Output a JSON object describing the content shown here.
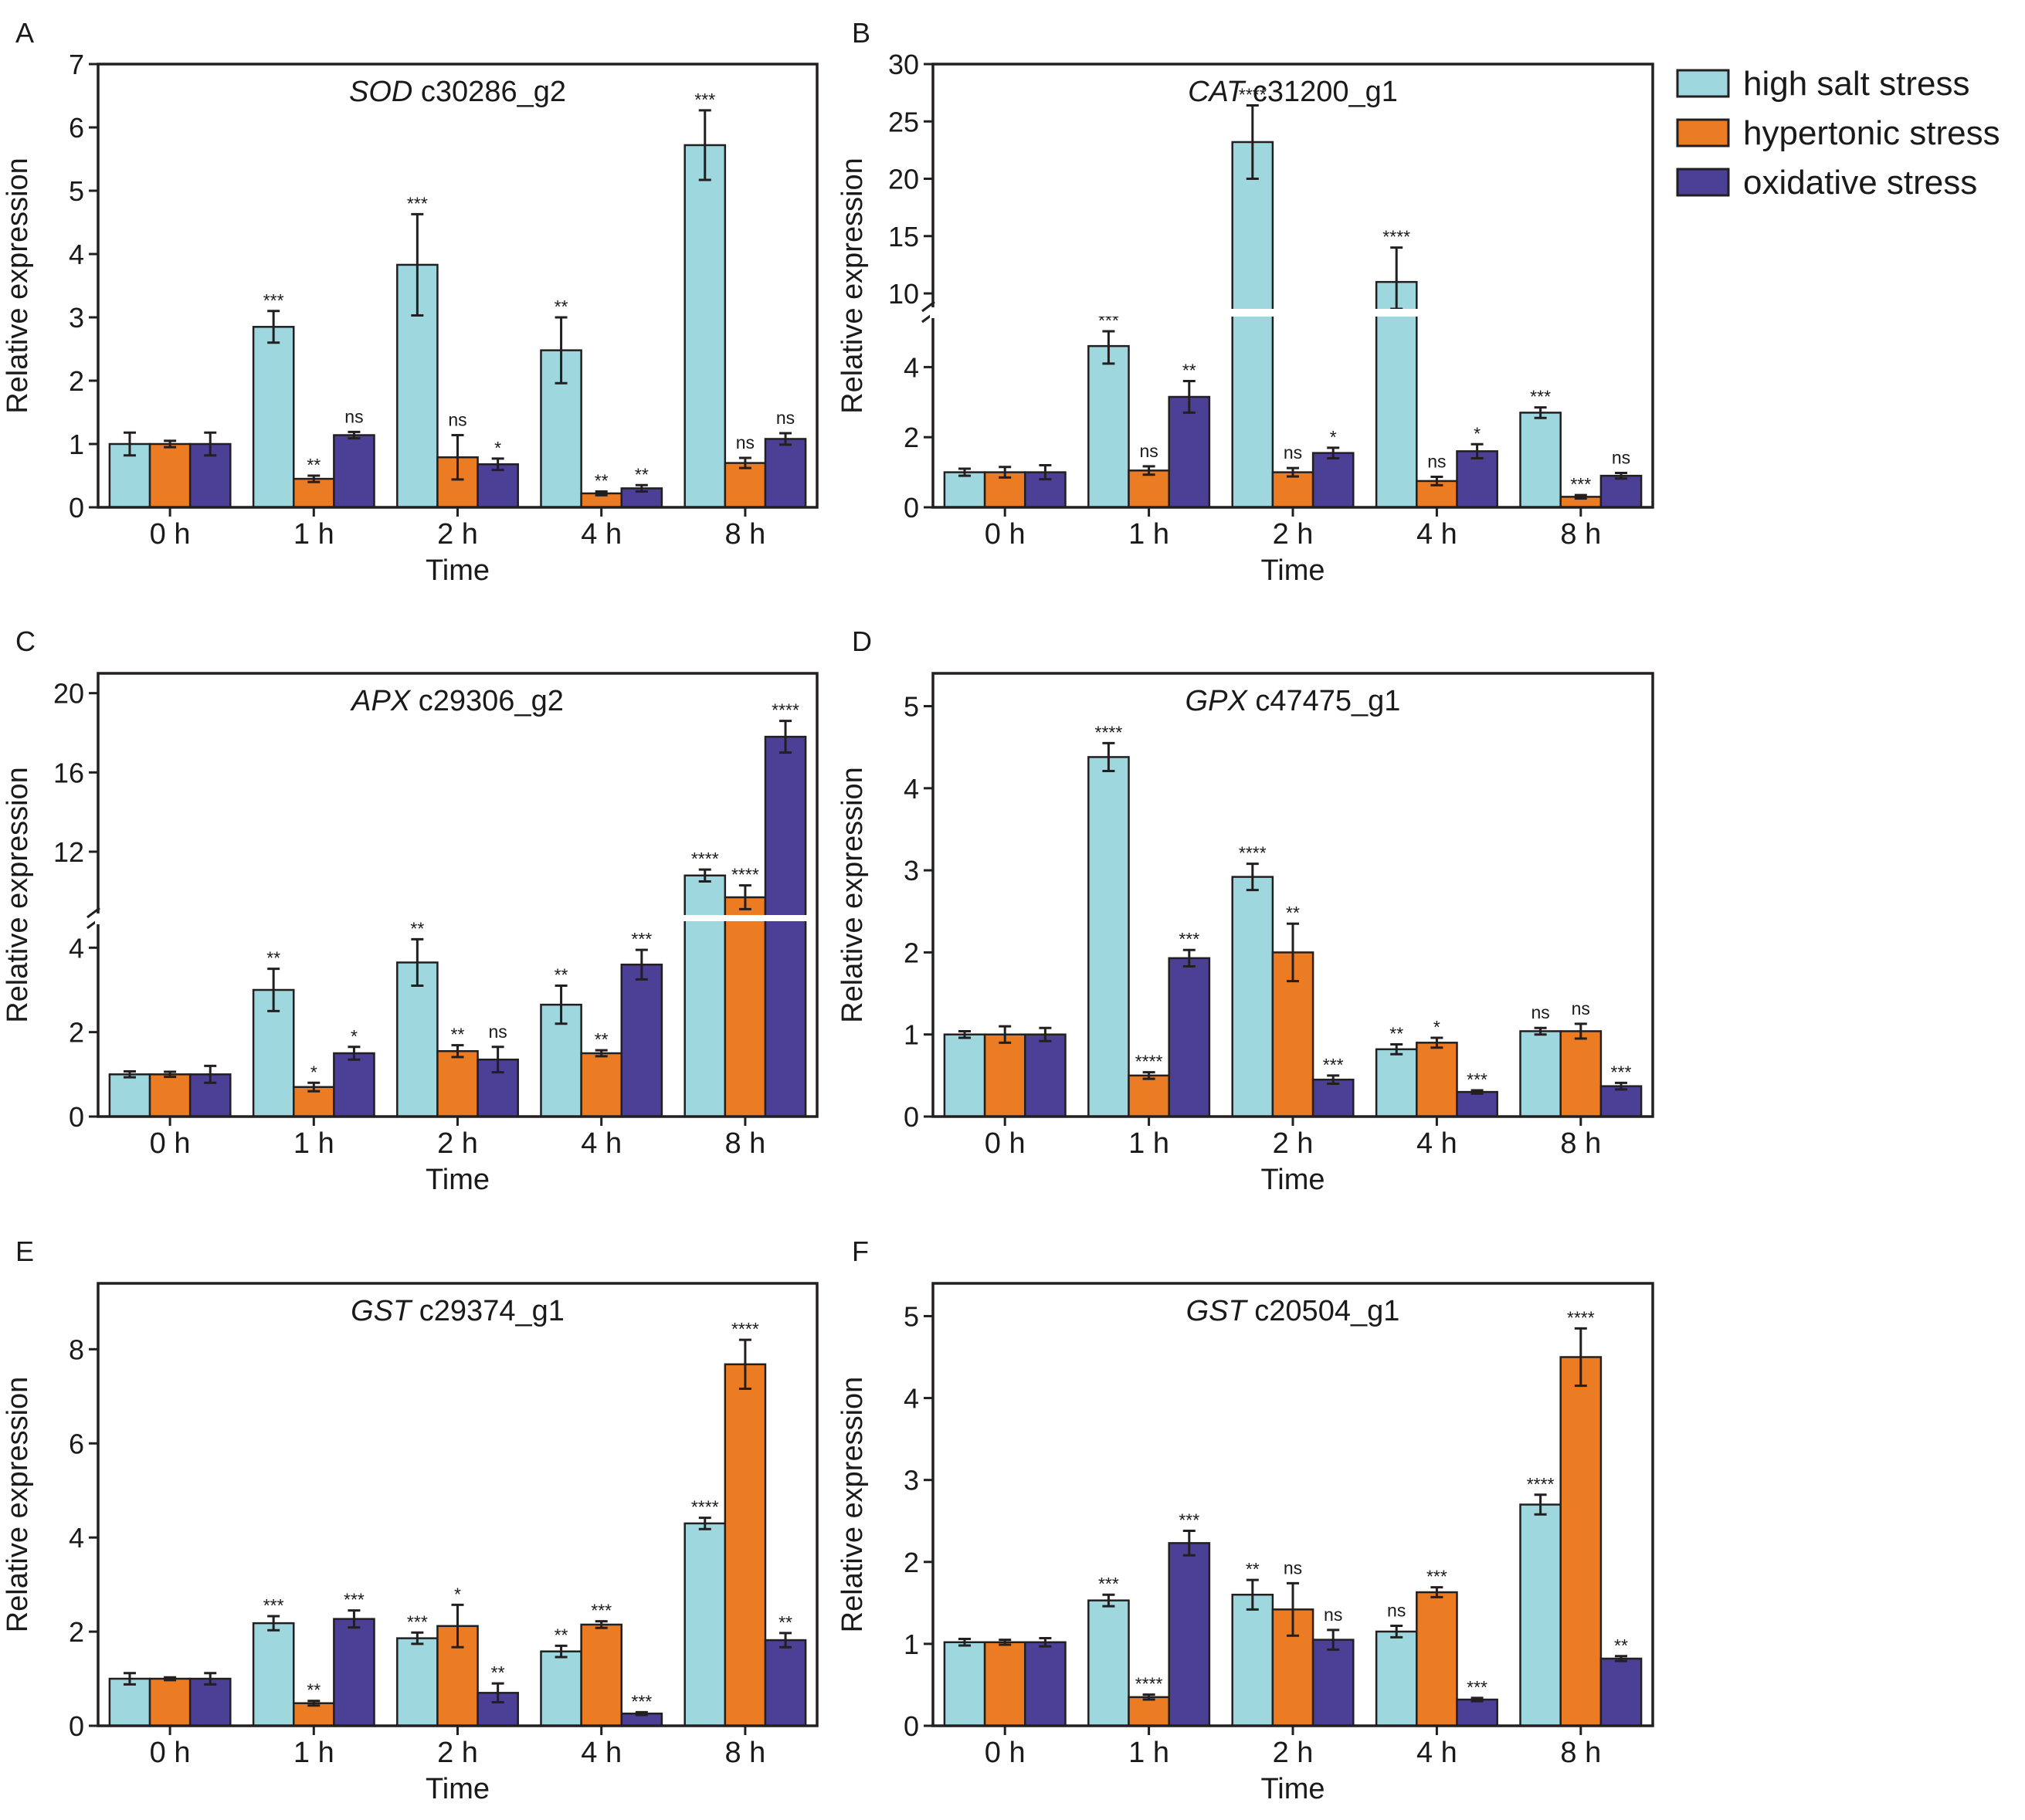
{
  "colors": {
    "high_salt": "#9ed8de",
    "hypertonic": "#ec7c24",
    "oxidative": "#4b3f96",
    "frame": "#231f20"
  },
  "legend": [
    {
      "key": "high_salt",
      "label": "high salt stress"
    },
    {
      "key": "hypertonic",
      "label": "hypertonic stress"
    },
    {
      "key": "oxidative",
      "label": "oxidative stress"
    }
  ],
  "chart_data": [
    {
      "panel": "A",
      "type": "bar",
      "title_italic": "SOD",
      "title_rest": " c30286_g2",
      "xlabel": "Time",
      "ylabel": "Relative expression",
      "categories": [
        "0 h",
        "1 h",
        "2 h",
        "4 h",
        "8 h"
      ],
      "ylim": [
        0,
        7
      ],
      "yticks": [
        0,
        1,
        2,
        3,
        4,
        5,
        6,
        7
      ],
      "series": [
        {
          "name": "high salt stress",
          "values": [
            1.0,
            2.85,
            3.83,
            2.48,
            5.72
          ],
          "errors": [
            0.18,
            0.25,
            0.8,
            0.52,
            0.55
          ],
          "sig": [
            "",
            "***",
            "***",
            "**",
            "***"
          ]
        },
        {
          "name": "hypertonic stress",
          "values": [
            1.0,
            0.45,
            0.79,
            0.22,
            0.7
          ],
          "errors": [
            0.05,
            0.05,
            0.35,
            0.03,
            0.08
          ],
          "sig": [
            "",
            "**",
            "ns",
            "**",
            "ns"
          ]
        },
        {
          "name": "oxidative stress",
          "values": [
            1.0,
            1.14,
            0.68,
            0.3,
            1.08
          ],
          "errors": [
            0.18,
            0.05,
            0.09,
            0.05,
            0.09
          ],
          "sig": [
            "",
            "ns",
            "*",
            "**",
            "ns"
          ]
        }
      ]
    },
    {
      "panel": "B",
      "type": "bar",
      "title_italic": "CAT",
      "title_rest": " c31200_g1",
      "xlabel": "Time",
      "ylabel": "Relative expression",
      "categories": [
        "0 h",
        "1 h",
        "2 h",
        "4 h",
        "8 h"
      ],
      "axis_break": {
        "lower": [
          0,
          5
        ],
        "upper": [
          10,
          30
        ]
      },
      "yticks": [
        0,
        2,
        4,
        10,
        15,
        20,
        25,
        30
      ],
      "series": [
        {
          "name": "high salt stress",
          "values": [
            1.0,
            4.6,
            23.2,
            11.0,
            2.7
          ],
          "errors": [
            0.1,
            0.5,
            3.2,
            3.0,
            0.15
          ],
          "sig": [
            "",
            "***",
            "****",
            "****",
            "***"
          ]
        },
        {
          "name": "hypertonic stress",
          "values": [
            1.0,
            1.05,
            1.0,
            0.75,
            0.3
          ],
          "errors": [
            0.15,
            0.12,
            0.12,
            0.12,
            0.05
          ],
          "sig": [
            "",
            "ns",
            "ns",
            "ns",
            "***"
          ]
        },
        {
          "name": "oxidative stress",
          "values": [
            1.0,
            3.15,
            1.55,
            1.6,
            0.9
          ],
          "errors": [
            0.2,
            0.45,
            0.15,
            0.2,
            0.08
          ],
          "sig": [
            "",
            "**",
            "*",
            "*",
            "ns"
          ]
        }
      ]
    },
    {
      "panel": "C",
      "type": "bar",
      "title_italic": "APX",
      "title_rest": " c29306_g2",
      "xlabel": "Time",
      "ylabel": "Relative expression",
      "categories": [
        "0 h",
        "1 h",
        "2 h",
        "4 h",
        "8 h"
      ],
      "axis_break": {
        "lower": [
          0,
          4.5
        ],
        "upper": [
          9,
          21
        ]
      },
      "yticks": [
        0,
        2,
        4,
        12,
        16,
        20
      ],
      "series": [
        {
          "name": "high salt stress",
          "values": [
            1.0,
            3.0,
            3.65,
            2.65,
            10.8
          ],
          "errors": [
            0.07,
            0.5,
            0.55,
            0.45,
            0.3
          ],
          "sig": [
            "",
            "**",
            "**",
            "**",
            "****"
          ]
        },
        {
          "name": "hypertonic stress",
          "values": [
            1.0,
            0.7,
            1.55,
            1.5,
            9.7
          ],
          "errors": [
            0.06,
            0.1,
            0.14,
            0.07,
            0.6
          ],
          "sig": [
            "",
            "*",
            "**",
            "**",
            "****"
          ]
        },
        {
          "name": "oxidative stress",
          "values": [
            1.0,
            1.5,
            1.35,
            3.6,
            17.8
          ],
          "errors": [
            0.2,
            0.15,
            0.3,
            0.35,
            0.8
          ],
          "sig": [
            "",
            "*",
            "ns",
            "***",
            "****"
          ]
        }
      ]
    },
    {
      "panel": "D",
      "type": "bar",
      "title_italic": "GPX",
      "title_rest": " c47475_g1",
      "xlabel": "Time",
      "ylabel": "Relative expression",
      "categories": [
        "0 h",
        "1 h",
        "2 h",
        "4 h",
        "8 h"
      ],
      "ylim": [
        0,
        5.4
      ],
      "yticks": [
        0,
        1,
        2,
        3,
        4,
        5
      ],
      "series": [
        {
          "name": "high salt stress",
          "values": [
            1.0,
            4.38,
            2.92,
            0.82,
            1.04
          ],
          "errors": [
            0.04,
            0.17,
            0.16,
            0.06,
            0.04
          ],
          "sig": [
            "",
            "****",
            "****",
            "**",
            "ns"
          ]
        },
        {
          "name": "hypertonic stress",
          "values": [
            1.0,
            0.5,
            2.0,
            0.9,
            1.04
          ],
          "errors": [
            0.1,
            0.04,
            0.35,
            0.06,
            0.09
          ],
          "sig": [
            "",
            "****",
            "**",
            "*",
            "ns"
          ]
        },
        {
          "name": "oxidative stress",
          "values": [
            1.0,
            1.93,
            0.45,
            0.3,
            0.37
          ],
          "errors": [
            0.08,
            0.1,
            0.05,
            0.02,
            0.04
          ],
          "sig": [
            "",
            "***",
            "***",
            "***",
            "***"
          ]
        }
      ]
    },
    {
      "panel": "E",
      "type": "bar",
      "title_italic": "GST",
      "title_rest": " c29374_g1",
      "xlabel": "Time",
      "ylabel": "Relative expression",
      "categories": [
        "0 h",
        "1 h",
        "2 h",
        "4 h",
        "8 h"
      ],
      "ylim": [
        0,
        9.4
      ],
      "yticks": [
        0,
        2,
        4,
        6,
        8
      ],
      "series": [
        {
          "name": "high salt stress",
          "values": [
            1.0,
            2.18,
            1.86,
            1.58,
            4.3
          ],
          "errors": [
            0.12,
            0.15,
            0.12,
            0.12,
            0.12
          ],
          "sig": [
            "",
            "***",
            "***",
            "**",
            "****"
          ]
        },
        {
          "name": "hypertonic stress",
          "values": [
            1.0,
            0.48,
            2.12,
            2.15,
            7.68
          ],
          "errors": [
            0.03,
            0.05,
            0.45,
            0.07,
            0.52
          ],
          "sig": [
            "",
            "**",
            "*",
            "***",
            "****"
          ]
        },
        {
          "name": "oxidative stress",
          "values": [
            1.0,
            2.27,
            0.7,
            0.26,
            1.82
          ],
          "errors": [
            0.12,
            0.18,
            0.2,
            0.03,
            0.15
          ],
          "sig": [
            "",
            "***",
            "**",
            "***",
            "**"
          ]
        }
      ]
    },
    {
      "panel": "F",
      "type": "bar",
      "title_italic": "GST",
      "title_rest": " c20504_g1",
      "xlabel": "Time",
      "ylabel": "Relative expression",
      "categories": [
        "0 h",
        "1 h",
        "2 h",
        "4 h",
        "8 h"
      ],
      "ylim": [
        0,
        5.4
      ],
      "yticks": [
        0,
        1,
        2,
        3,
        4,
        5
      ],
      "series": [
        {
          "name": "high salt stress",
          "values": [
            1.02,
            1.53,
            1.6,
            1.15,
            2.7
          ],
          "errors": [
            0.04,
            0.07,
            0.18,
            0.07,
            0.12
          ],
          "sig": [
            "",
            "***",
            "**",
            "ns",
            "****"
          ]
        },
        {
          "name": "hypertonic stress",
          "values": [
            1.02,
            0.35,
            1.42,
            1.63,
            4.5
          ],
          "errors": [
            0.03,
            0.03,
            0.32,
            0.06,
            0.35
          ],
          "sig": [
            "",
            "****",
            "ns",
            "***",
            "****"
          ]
        },
        {
          "name": "oxidative stress",
          "values": [
            1.02,
            2.23,
            1.05,
            0.32,
            0.82
          ],
          "errors": [
            0.05,
            0.15,
            0.12,
            0.02,
            0.03
          ],
          "sig": [
            "",
            "***",
            "ns",
            "***",
            "**"
          ]
        }
      ]
    }
  ]
}
